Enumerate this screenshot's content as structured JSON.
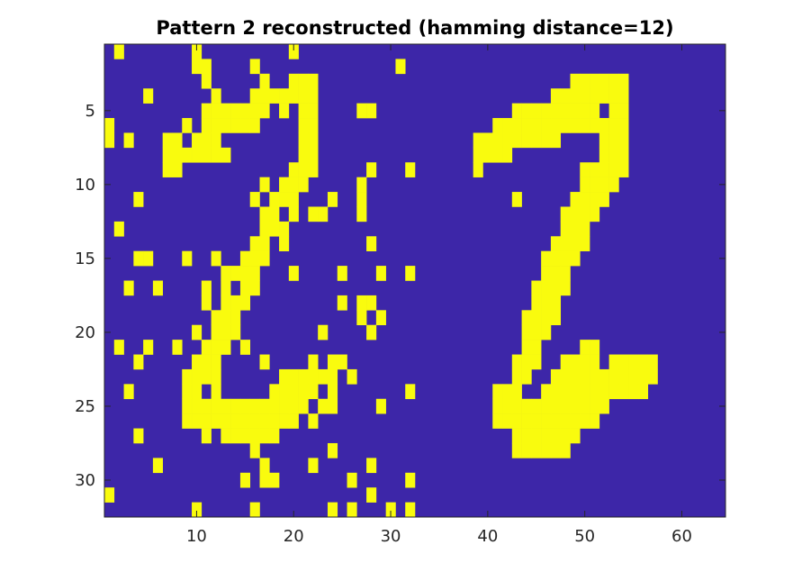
{
  "chart_data": {
    "type": "heatmap",
    "title": "Pattern 2 reconstructed (hamming distance=12)",
    "xlabel": "",
    "ylabel": "",
    "rows": 32,
    "cols": 64,
    "xlim": [
      0.5,
      64.5
    ],
    "ylim": [
      0.5,
      32.5
    ],
    "y_reversed": true,
    "xticks": [
      10,
      20,
      30,
      40,
      50,
      60
    ],
    "yticks": [
      5,
      10,
      15,
      20,
      25,
      30
    ],
    "grid": false,
    "colors": {
      "off": "#3D26A8",
      "on": "#F9FB0E"
    },
    "on_cells": [
      {
        "row": 1,
        "cols": [
          2,
          10,
          20
        ]
      },
      {
        "row": 2,
        "cols": [
          10,
          11,
          16,
          31
        ]
      },
      {
        "row": 3,
        "cols": [
          11,
          17,
          20,
          21,
          22,
          49,
          50,
          51,
          52,
          53,
          54
        ]
      },
      {
        "row": 4,
        "cols": [
          5,
          12,
          16,
          17,
          18,
          19,
          20,
          21,
          22,
          47,
          48,
          49,
          50,
          51,
          52,
          53,
          54
        ]
      },
      {
        "row": 5,
        "cols": [
          11,
          12,
          13,
          14,
          15,
          16,
          17,
          19,
          21,
          22,
          27,
          28,
          43,
          44,
          45,
          46,
          47,
          48,
          49,
          50,
          51,
          53,
          54
        ]
      },
      {
        "row": 6,
        "cols": [
          1,
          9,
          11,
          12,
          13,
          14,
          15,
          16,
          21,
          22,
          41,
          42,
          43,
          44,
          45,
          46,
          47,
          48,
          49,
          50,
          51,
          52,
          53,
          54
        ]
      },
      {
        "row": 7,
        "cols": [
          1,
          3,
          7,
          8,
          10,
          11,
          12,
          21,
          22,
          39,
          40,
          41,
          42,
          43,
          44,
          45,
          46,
          47,
          52,
          53,
          54
        ]
      },
      {
        "row": 8,
        "cols": [
          7,
          8,
          9,
          10,
          11,
          12,
          13,
          21,
          22,
          39,
          40,
          41,
          42,
          52,
          53,
          54
        ]
      },
      {
        "row": 9,
        "cols": [
          7,
          8,
          20,
          21,
          22,
          28,
          32,
          39,
          50,
          51,
          52,
          53,
          54
        ]
      },
      {
        "row": 10,
        "cols": [
          17,
          19,
          20,
          21,
          27,
          50,
          51,
          52,
          53
        ]
      },
      {
        "row": 11,
        "cols": [
          4,
          16,
          18,
          19,
          20,
          24,
          27,
          43,
          49,
          50,
          51,
          52
        ]
      },
      {
        "row": 12,
        "cols": [
          17,
          18,
          20,
          22,
          23,
          27,
          48,
          49,
          50,
          51
        ]
      },
      {
        "row": 13,
        "cols": [
          2,
          17,
          18,
          19,
          48,
          49,
          50
        ]
      },
      {
        "row": 14,
        "cols": [
          16,
          17,
          19,
          28,
          47,
          48,
          49,
          50
        ]
      },
      {
        "row": 15,
        "cols": [
          4,
          5,
          9,
          12,
          15,
          16,
          17,
          46,
          47,
          48,
          49
        ]
      },
      {
        "row": 16,
        "cols": [
          13,
          14,
          15,
          16,
          20,
          25,
          29,
          32,
          46,
          47,
          48
        ]
      },
      {
        "row": 17,
        "cols": [
          3,
          6,
          11,
          13,
          15,
          16,
          45,
          46,
          47,
          48
        ]
      },
      {
        "row": 18,
        "cols": [
          11,
          13,
          14,
          15,
          25,
          27,
          28,
          45,
          46,
          47
        ]
      },
      {
        "row": 19,
        "cols": [
          12,
          13,
          14,
          27,
          29,
          44,
          45,
          46,
          47
        ]
      },
      {
        "row": 20,
        "cols": [
          10,
          12,
          13,
          14,
          23,
          28,
          44,
          45,
          46
        ]
      },
      {
        "row": 21,
        "cols": [
          2,
          5,
          8,
          11,
          12,
          13,
          15,
          44,
          45,
          50,
          51
        ]
      },
      {
        "row": 22,
        "cols": [
          4,
          10,
          11,
          12,
          17,
          22,
          24,
          25,
          43,
          44,
          45,
          48,
          49,
          50,
          51,
          53,
          54,
          55,
          56,
          57
        ]
      },
      {
        "row": 23,
        "cols": [
          9,
          10,
          11,
          12,
          19,
          20,
          21,
          22,
          23,
          24,
          26,
          43,
          44,
          47,
          48,
          49,
          50,
          51,
          52,
          53,
          54,
          55,
          56,
          57
        ]
      },
      {
        "row": 24,
        "cols": [
          3,
          9,
          10,
          12,
          18,
          19,
          20,
          21,
          22,
          24,
          32,
          41,
          42,
          43,
          46,
          47,
          48,
          49,
          50,
          51,
          52,
          53,
          54,
          55,
          56
        ]
      },
      {
        "row": 25,
        "cols": [
          9,
          10,
          11,
          12,
          13,
          14,
          15,
          16,
          17,
          18,
          19,
          20,
          21,
          23,
          24,
          29,
          41,
          42,
          43,
          44,
          45,
          46,
          47,
          48,
          49,
          50,
          51,
          52
        ]
      },
      {
        "row": 26,
        "cols": [
          9,
          10,
          11,
          12,
          13,
          14,
          15,
          16,
          17,
          18,
          19,
          20,
          22,
          41,
          42,
          43,
          44,
          45,
          46,
          47,
          48,
          49,
          50,
          51
        ]
      },
      {
        "row": 27,
        "cols": [
          4,
          11,
          13,
          14,
          15,
          16,
          17,
          18,
          43,
          44,
          45,
          46,
          47,
          48,
          49
        ]
      },
      {
        "row": 28,
        "cols": [
          16,
          24,
          43,
          44,
          45,
          46,
          47,
          48
        ]
      },
      {
        "row": 29,
        "cols": [
          6,
          17,
          22,
          28
        ]
      },
      {
        "row": 30,
        "cols": [
          15,
          17,
          18,
          26,
          32
        ]
      },
      {
        "row": 31,
        "cols": [
          1,
          28
        ]
      },
      {
        "row": 32,
        "cols": [
          10,
          16,
          24,
          26,
          30,
          32
        ]
      }
    ]
  }
}
